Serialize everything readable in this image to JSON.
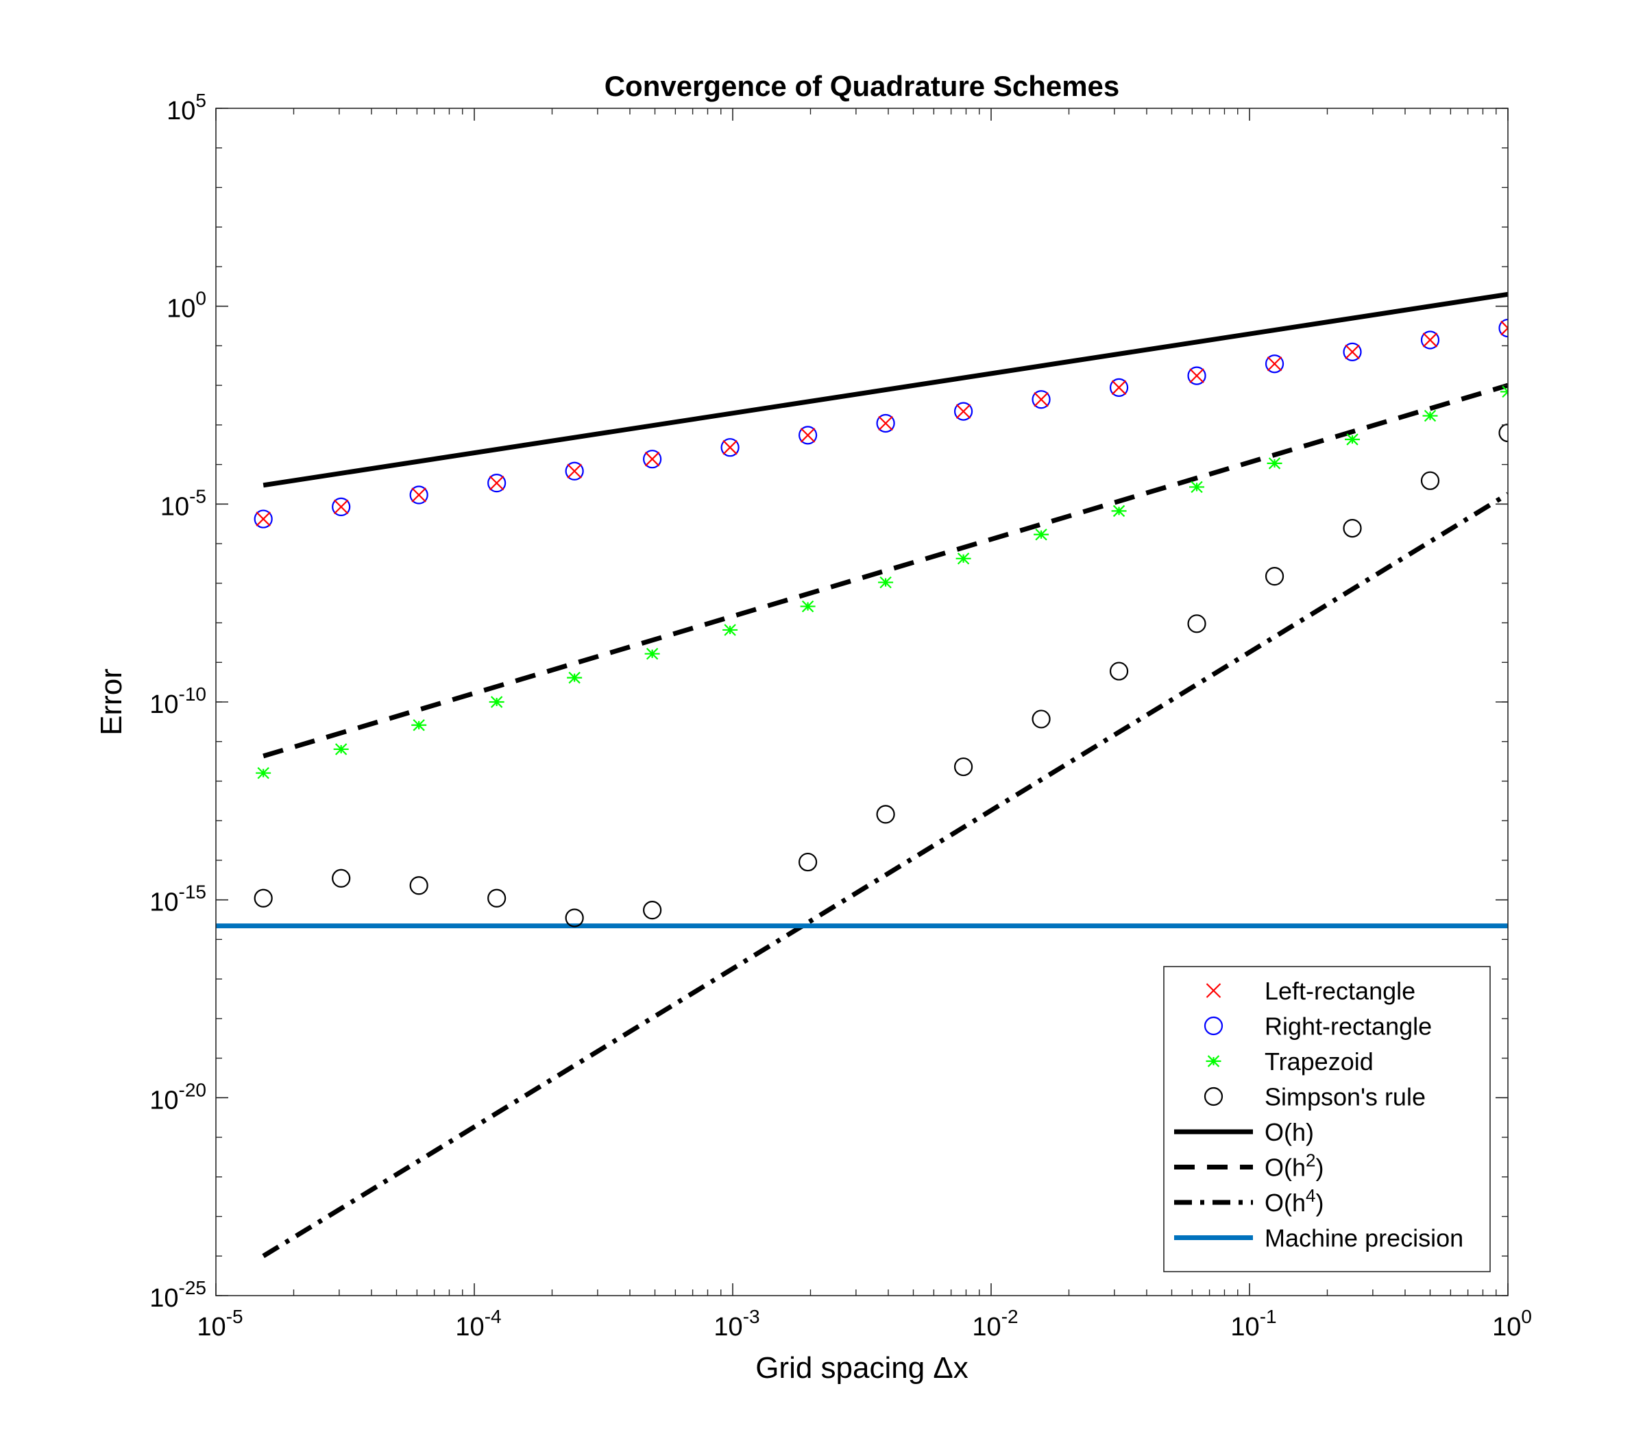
{
  "chart_data": {
    "type": "scatter",
    "title": "Convergence of Quadrature Schemes",
    "xlabel": "Grid spacing Δx",
    "ylabel": "Error",
    "xscale": "log",
    "yscale": "log",
    "xlim": [
      1e-05,
      1
    ],
    "ylim": [
      1e-25,
      100000.0
    ],
    "x_ticks": [
      {
        "base": "10",
        "exp": "-5"
      },
      {
        "base": "10",
        "exp": "-4"
      },
      {
        "base": "10",
        "exp": "-3"
      },
      {
        "base": "10",
        "exp": "-2"
      },
      {
        "base": "10",
        "exp": "-1"
      },
      {
        "base": "10",
        "exp": "0"
      }
    ],
    "y_ticks": [
      {
        "base": "10",
        "exp": "-25"
      },
      {
        "base": "10",
        "exp": "-20"
      },
      {
        "base": "10",
        "exp": "-15"
      },
      {
        "base": "10",
        "exp": "-10"
      },
      {
        "base": "10",
        "exp": "-5"
      },
      {
        "base": "10",
        "exp": "0"
      },
      {
        "base": "10",
        "exp": "5"
      }
    ],
    "grid": false,
    "box": true,
    "legend_position": "bottom-right",
    "x": [
      1.52587890625e-05,
      3.0517578125e-05,
      6.103515625e-05,
      0.0001220703125,
      0.000244140625,
      0.00048828125,
      0.0009765625,
      0.001953125,
      0.00390625,
      0.0078125,
      0.015625,
      0.03125,
      0.0625,
      0.125,
      0.25,
      0.5,
      1
    ],
    "series": [
      {
        "name": "Left-rectangle",
        "marker": "x",
        "color": "#ff0000",
        "y": [
          4.2e-06,
          8.5e-06,
          1.7e-05,
          3.4e-05,
          6.8e-05,
          0.000137,
          0.00027,
          0.00055,
          0.0011,
          0.0022,
          0.0044,
          0.0088,
          0.0175,
          0.035,
          0.07,
          0.14,
          0.28
        ]
      },
      {
        "name": "Right-rectangle",
        "marker": "o",
        "color": "#0000ff",
        "y": [
          4.2e-06,
          8.5e-06,
          1.7e-05,
          3.4e-05,
          6.8e-05,
          0.000137,
          0.00027,
          0.00055,
          0.0011,
          0.0022,
          0.0044,
          0.0088,
          0.0175,
          0.035,
          0.07,
          0.14,
          0.28
        ]
      },
      {
        "name": "Trapezoid",
        "marker": "*",
        "color": "#00ff00",
        "y": [
          1.6e-12,
          6.4e-12,
          2.6e-11,
          1e-10,
          4.1e-10,
          1.65e-09,
          6.6e-09,
          2.6e-08,
          1.05e-07,
          4.2e-07,
          1.7e-06,
          6.7e-06,
          2.7e-05,
          0.000107,
          0.00043,
          0.0017,
          0.0069
        ]
      },
      {
        "name": "Simpson's rule",
        "marker": "o",
        "color": "#000000",
        "y": [
          1.1e-15,
          3.5e-15,
          2.3e-15,
          1.1e-15,
          3.5e-16,
          5.5e-16,
          null,
          9e-15,
          1.45e-13,
          2.3e-12,
          3.7e-11,
          6e-10,
          9.5e-09,
          1.5e-07,
          2.45e-06,
          3.9e-05,
          0.00063
        ]
      },
      {
        "name": "O(h)",
        "style": "line",
        "dash": "solid",
        "color": "#000000",
        "x": [
          1.52587890625e-05,
          1
        ],
        "y": [
          3e-05,
          2.0
        ]
      },
      {
        "name": "O(h²)",
        "name_base": "O(h",
        "name_sup": "2",
        "name_tail": ")",
        "style": "line",
        "dash": "dashed",
        "color": "#000000",
        "x": [
          1.52587890625e-05,
          1
        ],
        "y": [
          4.3e-12,
          0.01
        ]
      },
      {
        "name": "O(h⁴)",
        "name_base": "O(h",
        "name_sup": "4",
        "name_tail": ")",
        "style": "line",
        "dash": "dashdot",
        "color": "#000000",
        "x": [
          1.52587890625e-05,
          1
        ],
        "y": [
          1e-24,
          1.8e-05
        ]
      },
      {
        "name": "Machine precision",
        "style": "hline",
        "color": "#0072bd",
        "y": [
          2.2e-16
        ]
      }
    ]
  }
}
